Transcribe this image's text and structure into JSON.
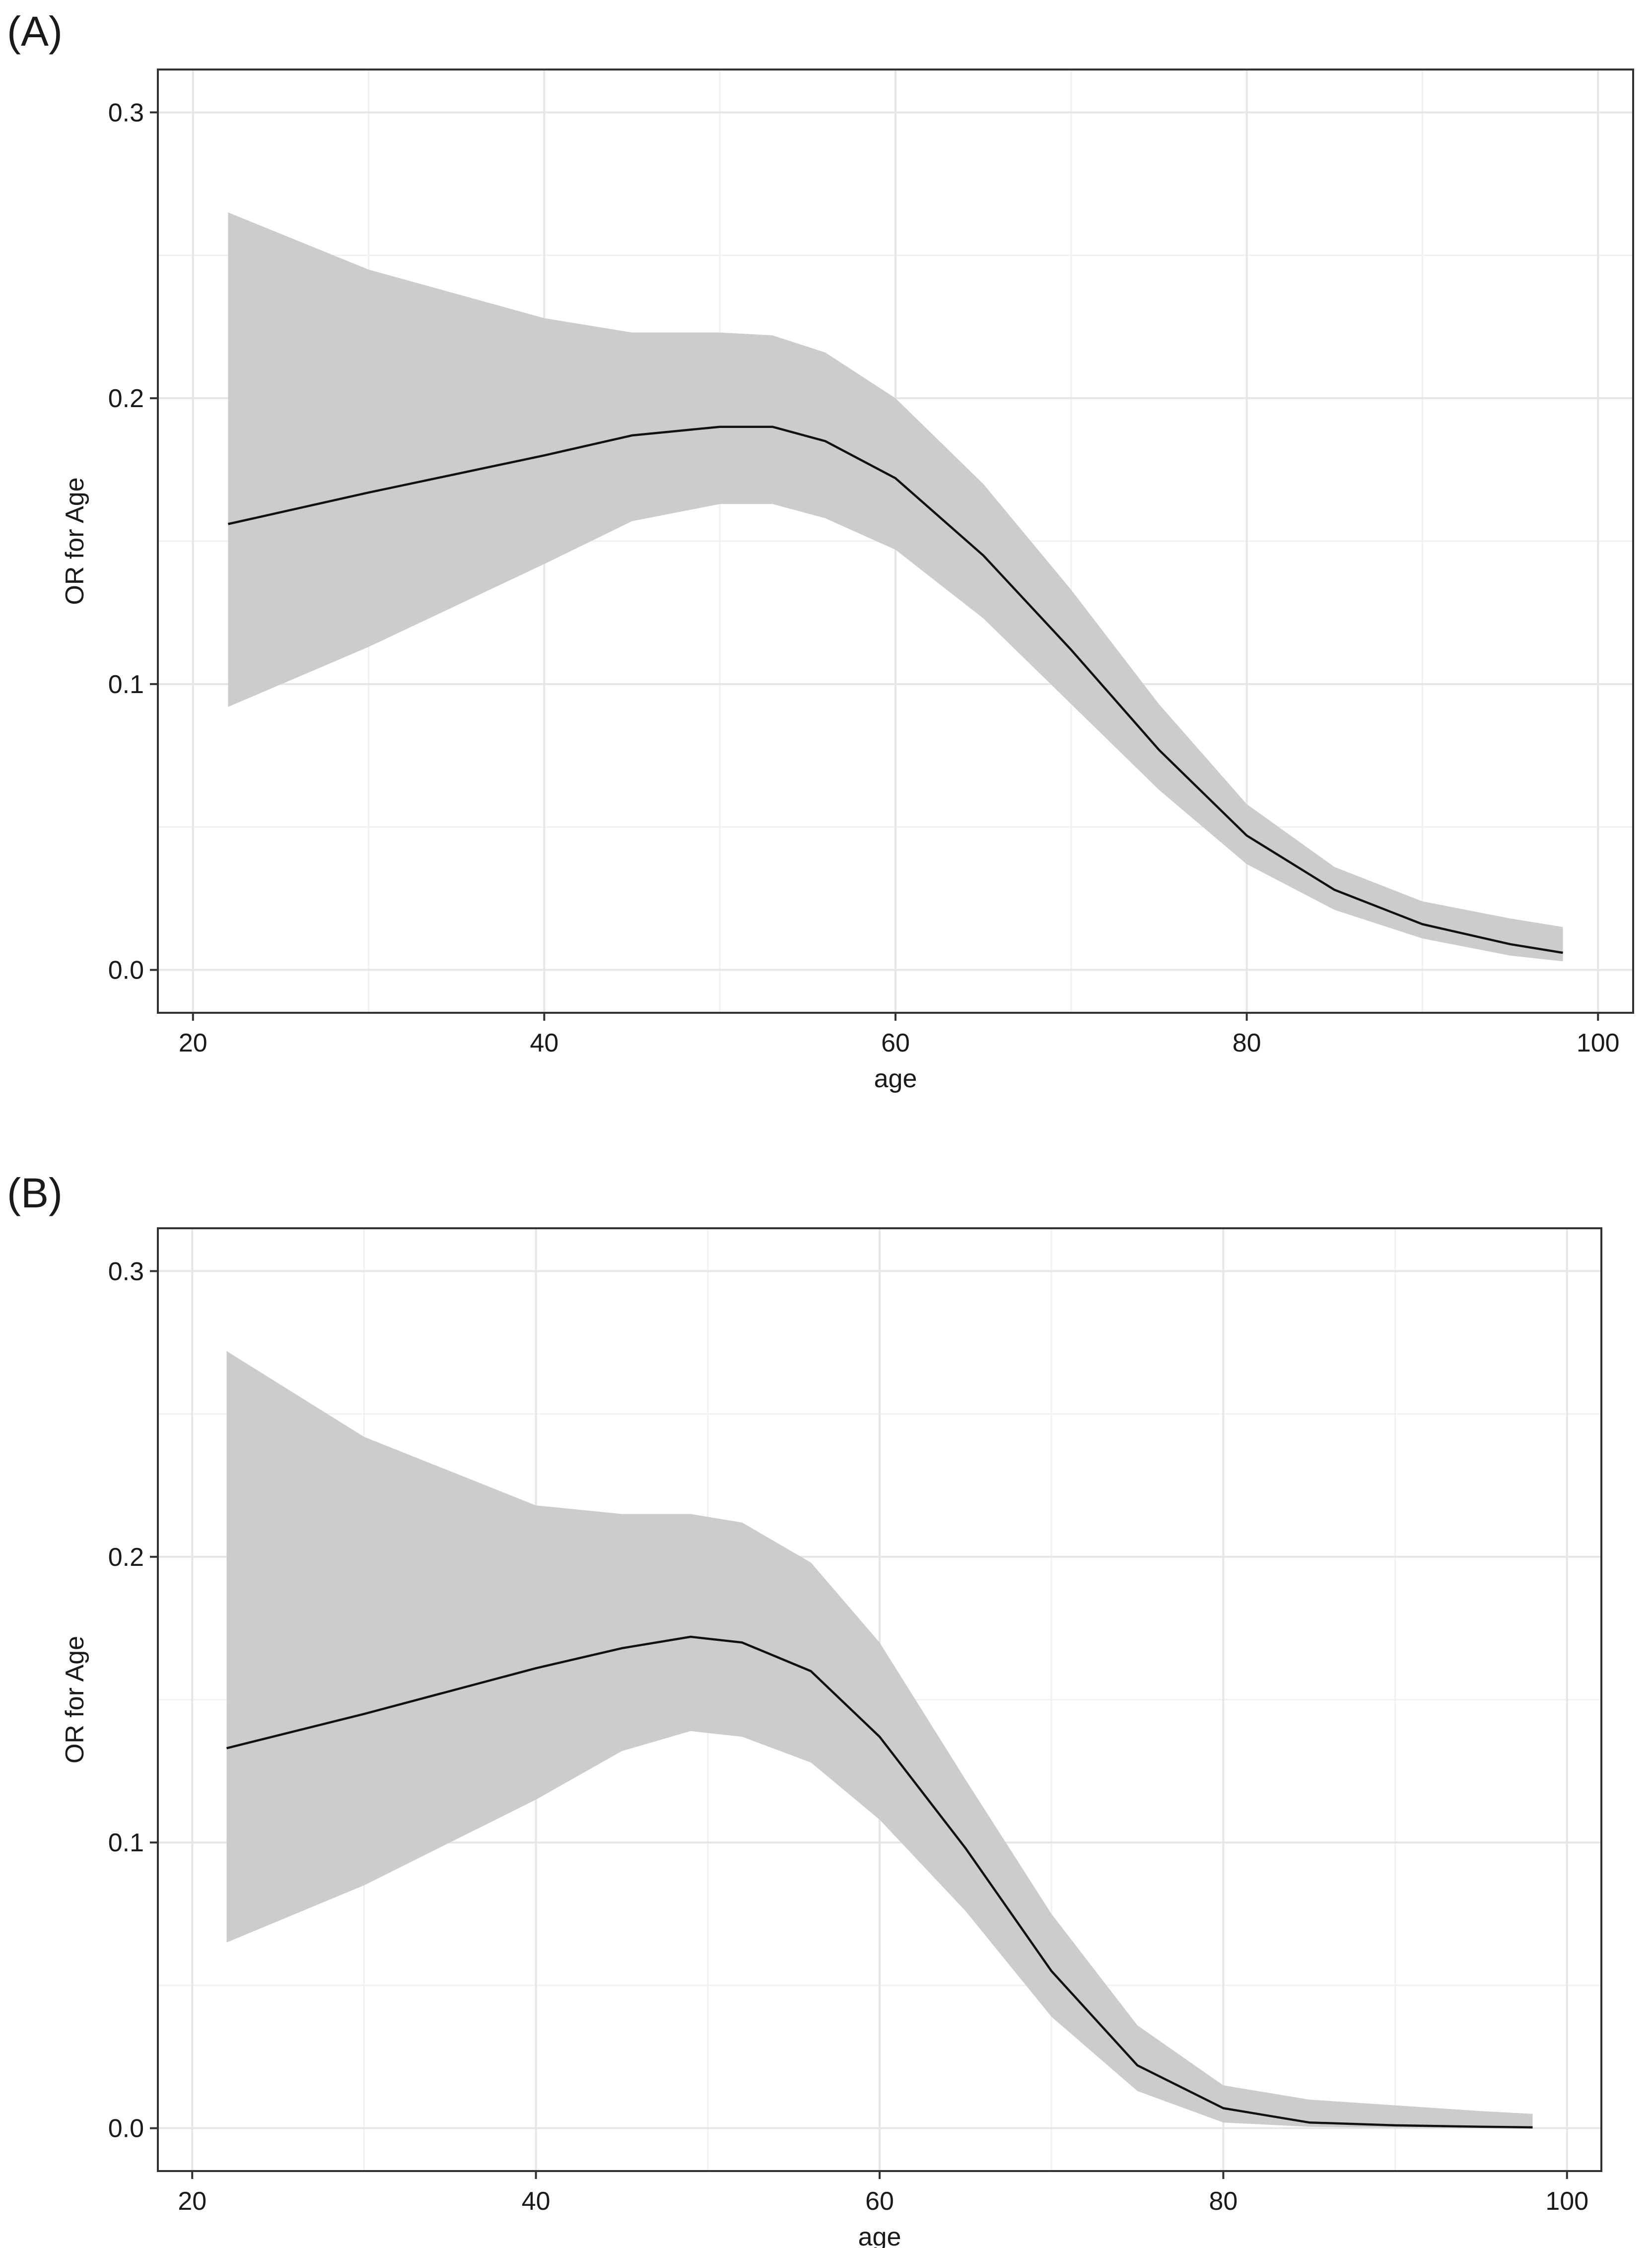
{
  "chart_data": [
    {
      "panel_label": "(A)",
      "type": "line",
      "xlabel": "age",
      "ylabel": "OR for Age",
      "xlim": [
        18,
        102
      ],
      "ylim": [
        -0.015,
        0.315
      ],
      "x_ticks": [
        20,
        40,
        60,
        80,
        100
      ],
      "y_ticks": [
        0.0,
        0.1,
        0.2,
        0.3
      ],
      "x_tick_labels": [
        "20",
        "40",
        "60",
        "80",
        "100"
      ],
      "y_tick_labels": [
        "0.0",
        "0.1",
        "0.2",
        "0.3"
      ],
      "grid": true,
      "series": [
        {
          "type": "line",
          "x": [
            22,
            30,
            40,
            45,
            50,
            53,
            56,
            60,
            65,
            70,
            75,
            80,
            85,
            90,
            95,
            98
          ],
          "y": [
            0.156,
            0.167,
            0.18,
            0.187,
            0.19,
            0.19,
            0.185,
            0.172,
            0.145,
            0.112,
            0.077,
            0.047,
            0.028,
            0.016,
            0.009,
            0.006
          ]
        },
        {
          "type": "band",
          "x": [
            22,
            30,
            40,
            45,
            50,
            53,
            56,
            60,
            65,
            70,
            75,
            80,
            85,
            90,
            95,
            98
          ],
          "lower": [
            0.092,
            0.113,
            0.142,
            0.157,
            0.163,
            0.163,
            0.158,
            0.147,
            0.123,
            0.093,
            0.063,
            0.037,
            0.021,
            0.011,
            0.005,
            0.003
          ],
          "upper": [
            0.265,
            0.245,
            0.228,
            0.223,
            0.223,
            0.222,
            0.216,
            0.2,
            0.17,
            0.133,
            0.093,
            0.058,
            0.036,
            0.024,
            0.018,
            0.015
          ]
        }
      ]
    },
    {
      "panel_label": "(B)",
      "type": "line",
      "xlabel": "age",
      "ylabel": "OR for Age",
      "xlim": [
        18,
        102
      ],
      "ylim": [
        -0.015,
        0.315
      ],
      "x_ticks": [
        20,
        40,
        60,
        80,
        100
      ],
      "y_ticks": [
        0.0,
        0.1,
        0.2,
        0.3
      ],
      "x_tick_labels": [
        "20",
        "40",
        "60",
        "80",
        "100"
      ],
      "y_tick_labels": [
        "0.0",
        "0.1",
        "0.2",
        "0.3"
      ],
      "grid": true,
      "series": [
        {
          "type": "line",
          "x": [
            22,
            30,
            40,
            45,
            49,
            52,
            56,
            60,
            65,
            70,
            75,
            80,
            85,
            90,
            95,
            98
          ],
          "y": [
            0.133,
            0.145,
            0.161,
            0.168,
            0.172,
            0.17,
            0.16,
            0.137,
            0.098,
            0.055,
            0.022,
            0.007,
            0.002,
            0.001,
            0.0005,
            0.0003
          ]
        },
        {
          "type": "band",
          "x": [
            22,
            30,
            40,
            45,
            49,
            52,
            56,
            60,
            65,
            70,
            75,
            80,
            85,
            90,
            95,
            98
          ],
          "lower": [
            0.065,
            0.085,
            0.115,
            0.132,
            0.139,
            0.137,
            0.128,
            0.108,
            0.076,
            0.039,
            0.013,
            0.002,
            0.0005,
            0.0002,
            0.0001,
            0.0001
          ],
          "upper": [
            0.272,
            0.242,
            0.218,
            0.215,
            0.215,
            0.212,
            0.198,
            0.17,
            0.122,
            0.075,
            0.036,
            0.015,
            0.01,
            0.008,
            0.006,
            0.005
          ]
        }
      ]
    }
  ]
}
